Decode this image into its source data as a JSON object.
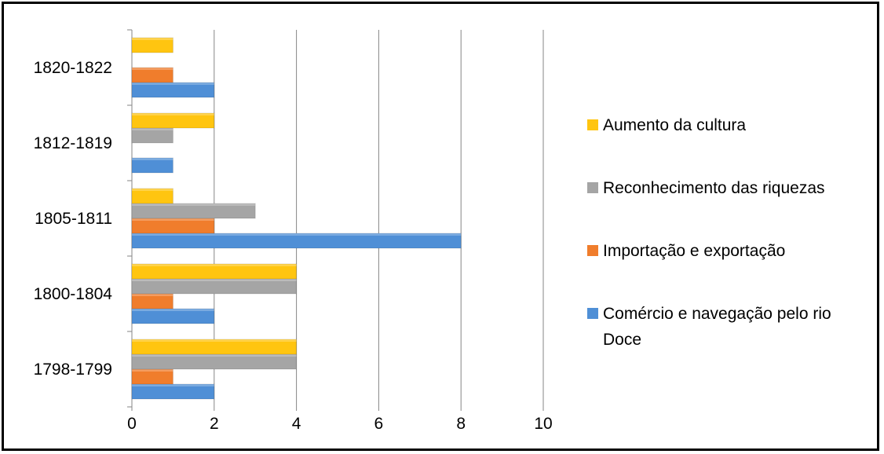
{
  "chart_data": {
    "type": "bar",
    "orientation": "horizontal",
    "categories": [
      "1798-1799",
      "1800-1804",
      "1805-1811",
      "1812-1819",
      "1820-1822"
    ],
    "series": [
      {
        "name": "Comércio e navegação pelo rio Doce",
        "color": "#4F8FD6",
        "values": [
          2,
          2,
          8,
          1,
          2
        ]
      },
      {
        "name": "Importação e exportação",
        "color": "#F07D2C",
        "values": [
          1,
          1,
          2,
          0,
          1
        ]
      },
      {
        "name": "Reconhecimento das riquezas",
        "color": "#A5A5A5",
        "values": [
          4,
          4,
          3,
          1,
          0
        ]
      },
      {
        "name": "Aumento da cultura",
        "color": "#FFC510",
        "values": [
          4,
          4,
          1,
          2,
          1
        ]
      }
    ],
    "xlim": [
      0,
      10
    ],
    "xticks": [
      "0",
      "2",
      "4",
      "6",
      "8",
      "10"
    ],
    "grid": true,
    "legend_position": "right",
    "legend_order": [
      3,
      2,
      1,
      0
    ],
    "legend_lines": [
      [
        "Aumento da cultura"
      ],
      [
        "Reconhecimento das riquezas"
      ],
      [
        "Importação e exportação"
      ],
      [
        "Comércio e navegação pelo rio",
        "Doce"
      ]
    ],
    "title": "",
    "xlabel": "",
    "ylabel": ""
  }
}
